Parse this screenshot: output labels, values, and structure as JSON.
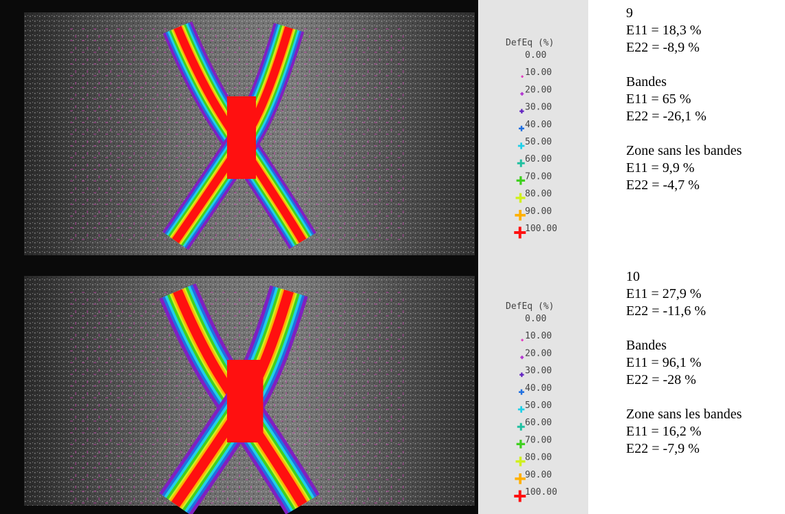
{
  "panels": [
    {
      "legend": {
        "title": "DefEq (%)",
        "levels": [
          {
            "label": "0.00"
          },
          {
            "label": "10.00",
            "color": "#e040c0"
          },
          {
            "label": "20.00",
            "color": "#b030d0"
          },
          {
            "label": "30.00",
            "color": "#6020c0"
          },
          {
            "label": "40.00",
            "color": "#2070e0"
          },
          {
            "label": "50.00",
            "color": "#20d0e8"
          },
          {
            "label": "60.00",
            "color": "#20c0a0"
          },
          {
            "label": "70.00",
            "color": "#40d020"
          },
          {
            "label": "80.00",
            "color": "#d0f020"
          },
          {
            "label": "90.00",
            "color": "#ffb000"
          },
          {
            "label": "100.00",
            "color": "#ff1010"
          }
        ]
      },
      "stage": "9",
      "global": [
        "E11 = 18,3 %",
        "E22 = -8,9 %"
      ],
      "bands": {
        "title": "Bandes",
        "lines": [
          "E11 = 65 %",
          "E22 = -26,1  %"
        ]
      },
      "outside": {
        "title": "Zone sans les bandes",
        "lines": [
          "E11 = 9,9 %",
          "E22 = -4,7 %"
        ]
      }
    },
    {
      "legend": {
        "title": "DefEq (%)",
        "levels": [
          {
            "label": "0.00"
          },
          {
            "label": "10.00",
            "color": "#e040c0"
          },
          {
            "label": "20.00",
            "color": "#b030d0"
          },
          {
            "label": "30.00",
            "color": "#6020c0"
          },
          {
            "label": "40.00",
            "color": "#2070e0"
          },
          {
            "label": "50.00",
            "color": "#20d0e8"
          },
          {
            "label": "60.00",
            "color": "#20c0a0"
          },
          {
            "label": "70.00",
            "color": "#40d020"
          },
          {
            "label": "80.00",
            "color": "#d0f020"
          },
          {
            "label": "90.00",
            "color": "#ffb000"
          },
          {
            "label": "100.00",
            "color": "#ff1010"
          }
        ]
      },
      "stage": "10",
      "global": [
        "E11 = 27,9 %",
        "E22 = -11,6 %"
      ],
      "bands": {
        "title": "Bandes",
        "lines": [
          "E11 = 96,1 %",
          "E22 = -28  %"
        ]
      },
      "outside": {
        "title": "Zone sans les bandes",
        "lines": [
          "E11 = 16,2 %",
          "E22 = -7,9 %"
        ]
      }
    }
  ]
}
